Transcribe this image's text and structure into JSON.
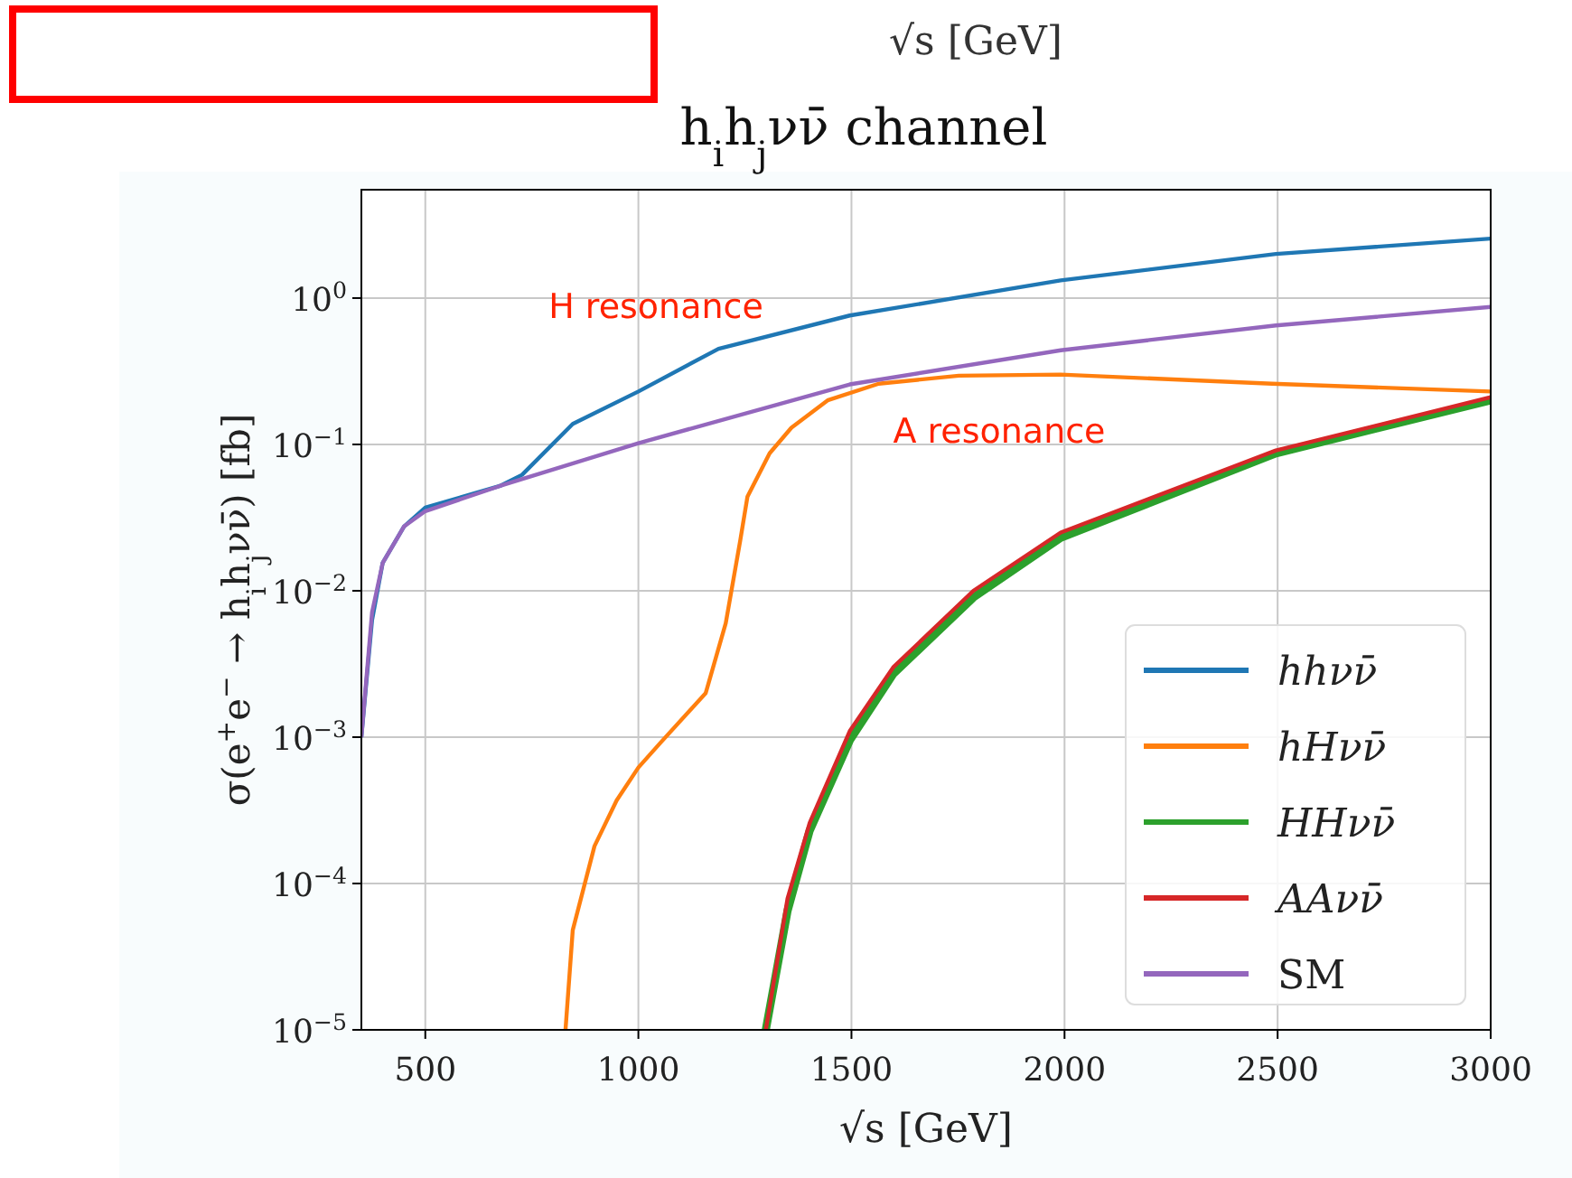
{
  "chart_data": {
    "type": "line",
    "title": "h$_{i}$h$_{j}$νν̄ channel",
    "xlabel": "√s [GeV]",
    "ylabel": "σ(e$^{+}$e$^{−}$ → h$_{i}$h$_{j}$νν̄) [fb]",
    "annotations": [
      "√s [GeV]",
      "H resonance",
      "A resonance"
    ],
    "log": "y",
    "grid": true,
    "legend": "bottom right",
    "line_style": "solid",
    "xlim": [
      350,
      3000
    ],
    "xticks": [
      500,
      1000,
      1500,
      2000,
      2500,
      3000
    ],
    "ylim": [
      1e-05,
      5.5
    ],
    "yticks": [
      {
        "value": 1e-05,
        "label": "10$^{−5}$"
      },
      {
        "value": 0.0001,
        "label": "10$^{−4}$"
      },
      {
        "value": 0.001,
        "label": "10$^{−3}$"
      },
      {
        "value": 0.01,
        "label": "10$^{−2}$"
      },
      {
        "value": 0.1,
        "label": "10$^{−1}$"
      },
      {
        "value": 1,
        "label": "10$^{0}$"
      }
    ],
    "series": [
      {
        "name": "hhνν̄",
        "color": "#1f77b4",
        "x": [
          350,
          375,
          400,
          450,
          500,
          675,
          727,
          846,
          1000,
          1188,
          1496,
          1991,
          2496,
          3000
        ],
        "values": [
          0.001,
          0.0063,
          0.0155,
          0.0275,
          0.037,
          0.052,
          0.062,
          0.138,
          0.23,
          0.45,
          0.76,
          1.32,
          2.0,
          2.55
        ]
      },
      {
        "name": "hHνν̄",
        "color": "#ff7f0e",
        "x": [
          829,
          846,
          897,
          949,
          1000,
          1051,
          1158,
          1205,
          1239,
          1256,
          1308,
          1359,
          1444,
          1564,
          1752,
          1991,
          2487,
          3000
        ],
        "values": [
          1e-05,
          4.8e-05,
          0.00018,
          0.00037,
          0.00062,
          0.00091,
          0.002,
          0.006,
          0.022,
          0.044,
          0.087,
          0.13,
          0.2,
          0.26,
          0.295,
          0.3,
          0.26,
          0.23
        ]
      },
      {
        "name": "HHνν̄",
        "color": "#2ca02c",
        "x": [
          1299,
          1350,
          1402,
          1496,
          1598,
          1786,
          1991,
          2496,
          3000
        ],
        "values": [
          1e-05,
          6.5e-05,
          0.00023,
          0.00095,
          0.0027,
          0.009,
          0.023,
          0.087,
          0.2
        ]
      },
      {
        "name": "AAνν̄",
        "color": "#d62728",
        "x": [
          1299,
          1350,
          1402,
          1496,
          1598,
          1786,
          1991,
          2496,
          3000
        ],
        "values": [
          1e-05,
          7.9e-05,
          0.00026,
          0.0011,
          0.003,
          0.01,
          0.025,
          0.091,
          0.21
        ]
      },
      {
        "name": "SM",
        "color": "#9467bd",
        "x": [
          350,
          375,
          400,
          450,
          500,
          675,
          1000,
          1496,
          1991,
          2496,
          3000
        ],
        "values": [
          0.001,
          0.0071,
          0.0155,
          0.0275,
          0.035,
          0.052,
          0.102,
          0.257,
          0.44,
          0.65,
          0.87
        ]
      }
    ]
  }
}
